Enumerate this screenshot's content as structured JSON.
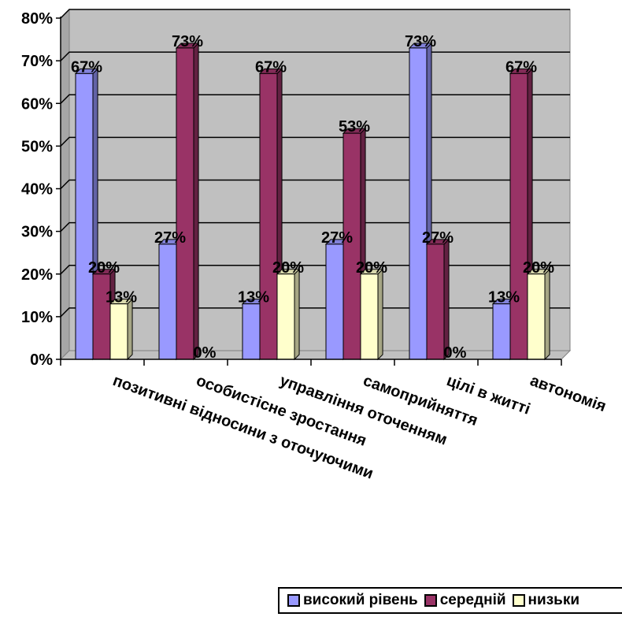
{
  "chart_data": {
    "type": "bar",
    "categories": [
      "позитивні відносини з оточуючими",
      "особистісне зростання",
      "управління оточенням",
      "самоприйняття",
      "цілі в житті",
      "автономія"
    ],
    "series": [
      {
        "name": "високий рівень",
        "values": [
          67,
          27,
          13,
          27,
          73,
          13
        ],
        "color": "#9999FF"
      },
      {
        "name": "середній",
        "values": [
          20,
          73,
          67,
          53,
          27,
          67
        ],
        "color": "#993366"
      },
      {
        "name": "низький",
        "values": [
          13,
          0,
          20,
          20,
          0,
          20
        ],
        "color": "#FFFFCC"
      }
    ],
    "data_labels": [
      [
        "67%",
        "27%",
        "13%",
        "27%",
        "73%",
        "13%"
      ],
      [
        "20%",
        "73%",
        "67%",
        "53%",
        "27%",
        "67%"
      ],
      [
        "13%",
        "0%",
        "20%",
        "20%",
        "0%",
        "20%"
      ]
    ],
    "y_ticks": [
      "0%",
      "10%",
      "20%",
      "30%",
      "40%",
      "50%",
      "60%",
      "70%",
      "80%"
    ],
    "ylim": [
      0,
      80
    ],
    "grid": true,
    "legend_position": "bottom-right",
    "legend_labels": [
      "високий рівень",
      "середній",
      "низьки"
    ],
    "plot_background": "#C0C0C0"
  }
}
